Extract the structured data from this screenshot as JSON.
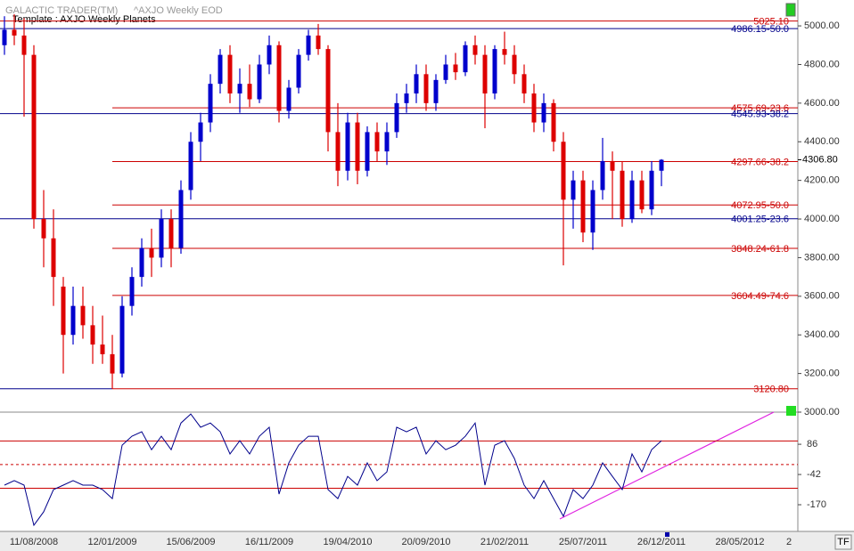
{
  "ui": {
    "tf_button": "TF"
  },
  "chart_data": [
    {
      "type": "candlestick",
      "title": "GALACTIC TRADER(TM)",
      "subtitle": "^AXJO Weekly EOD",
      "template": "Template : AXJO Weekly Planets",
      "categories": [
        null,
        null,
        null,
        "11/08/2008",
        null,
        null,
        null,
        null,
        null,
        null,
        null,
        "12/01/2009",
        null,
        null,
        null,
        null,
        null,
        null,
        null,
        "15/06/2009",
        null,
        null,
        null,
        null,
        null,
        null,
        null,
        "16/11/2009",
        null,
        null,
        null,
        null,
        null,
        null,
        null,
        "19/04/2010",
        null,
        null,
        null,
        null,
        null,
        null,
        null,
        "20/09/2010",
        null,
        null,
        null,
        null,
        null,
        null,
        null,
        "21/02/2011",
        null,
        null,
        null,
        null,
        null,
        null,
        null,
        "25/07/2011",
        null,
        null,
        null,
        null,
        null,
        null,
        null,
        "26/12/2011",
        null,
        null,
        null,
        null,
        null,
        null,
        null,
        "28/05/2012",
        null,
        null,
        null,
        null,
        "2"
      ],
      "open": [
        4900,
        4980,
        4950,
        4850,
        4000,
        3900,
        3650,
        3400,
        3550,
        3450,
        3350,
        3300,
        3200,
        3550,
        3700,
        3850,
        3800,
        4000,
        3850,
        4150,
        4400,
        4500,
        4700,
        4850,
        4650,
        4700,
        4620,
        4800,
        4900,
        4560,
        4680,
        4850,
        4950,
        4880,
        4450,
        4250,
        4500,
        4250,
        4450,
        4350,
        4450,
        4600,
        4650,
        4750,
        4600,
        4720,
        4800,
        4760,
        4900,
        4850,
        4650,
        4880,
        4850,
        4750,
        4650,
        4500,
        4600,
        4400,
        4100,
        4200,
        3930,
        4150,
        4300,
        4250,
        4000,
        4200,
        4050,
        4250,
        null,
        null,
        null,
        null,
        null,
        null,
        null,
        null,
        null,
        null,
        null,
        null,
        null
      ],
      "high": [
        5050,
        5060,
        5040,
        4900,
        4150,
        4050,
        3700,
        3650,
        3650,
        3550,
        3500,
        3400,
        3600,
        3750,
        3900,
        3950,
        4050,
        4050,
        4200,
        4450,
        4550,
        4750,
        4880,
        4900,
        4780,
        4800,
        4850,
        4950,
        4920,
        4720,
        4880,
        4980,
        5010,
        4900,
        4600,
        4550,
        4550,
        4480,
        4500,
        4500,
        4650,
        4700,
        4800,
        4800,
        4750,
        4850,
        4860,
        4920,
        4950,
        4900,
        4900,
        4970,
        4900,
        4800,
        4700,
        4650,
        4620,
        4450,
        4250,
        4250,
        4200,
        4420,
        4350,
        4300,
        4250,
        4250,
        4300,
        4310,
        null,
        null,
        null,
        null,
        null,
        null,
        null,
        null,
        null,
        null,
        null,
        null,
        null
      ],
      "low": [
        4850,
        4900,
        4530,
        3950,
        3750,
        3550,
        3200,
        3350,
        3380,
        3250,
        3250,
        3120,
        3180,
        3500,
        3650,
        3700,
        3750,
        3750,
        3820,
        4100,
        4300,
        4450,
        4650,
        4600,
        4550,
        4580,
        4600,
        4750,
        4500,
        4520,
        4650,
        4820,
        4850,
        4350,
        4170,
        4200,
        4180,
        4220,
        4300,
        4280,
        4420,
        4550,
        4600,
        4560,
        4560,
        4700,
        4720,
        4740,
        4800,
        4470,
        4620,
        4800,
        4700,
        4600,
        4450,
        4450,
        4350,
        3760,
        3950,
        3880,
        3840,
        4100,
        4000,
        3960,
        3980,
        4030,
        4020,
        4170,
        null,
        null,
        null,
        null,
        null,
        null,
        null,
        null,
        null,
        null,
        null,
        null,
        null
      ],
      "close": [
        4980,
        4950,
        4850,
        4000,
        3900,
        3700,
        3400,
        3550,
        3450,
        3350,
        3300,
        3200,
        3550,
        3700,
        3850,
        3800,
        4000,
        3850,
        4150,
        4400,
        4500,
        4700,
        4850,
        4650,
        4700,
        4620,
        4800,
        4900,
        4560,
        4680,
        4850,
        4950,
        4880,
        4450,
        4250,
        4500,
        4250,
        4450,
        4350,
        4450,
        4600,
        4650,
        4750,
        4600,
        4720,
        4800,
        4760,
        4900,
        4850,
        4650,
        4880,
        4850,
        4750,
        4650,
        4500,
        4600,
        4400,
        4100,
        4200,
        3930,
        4150,
        4300,
        4250,
        4000,
        4200,
        4050,
        4250,
        4306.8,
        null,
        null,
        null,
        null,
        null,
        null,
        null,
        null,
        null,
        null,
        null,
        null,
        null
      ],
      "up_color": "#0000cc",
      "down_color": "#dd0000",
      "ylim": [
        3000,
        5134
      ],
      "yticks": [
        {
          "value": 5000,
          "label": "5000.00"
        },
        {
          "value": 4800,
          "label": "4800.00"
        },
        {
          "value": 4600,
          "label": "4600.00"
        },
        {
          "value": 4400,
          "label": "4400.00"
        },
        {
          "value": 4200,
          "label": "4200.00"
        },
        {
          "value": 4000,
          "label": "4000.00"
        },
        {
          "value": 3800,
          "label": "3800.00"
        },
        {
          "value": 3600,
          "label": "3600.00"
        },
        {
          "value": 3400,
          "label": "3400.00"
        },
        {
          "value": 3200,
          "label": "3200.00"
        },
        {
          "value": 3000,
          "label": "3000.00"
        }
      ],
      "last_price": {
        "value": 4306.8,
        "label": "4306.80"
      },
      "levels": [
        {
          "value": 5025.1,
          "label": "5025.10",
          "color": "#cc0000"
        },
        {
          "value": 4986.15,
          "label": "4986.15-50.0",
          "color": "#00008b"
        },
        {
          "value": 4575.69,
          "label": "4575.69-23.6",
          "color": "#cc0000"
        },
        {
          "value": 4545.93,
          "label": "4545.93-38.2",
          "color": "#00008b"
        },
        {
          "value": 4297.66,
          "label": "4297.66-38.2",
          "color": "#cc0000"
        },
        {
          "value": 4072.95,
          "label": "4072.95-50.0",
          "color": "#cc0000"
        },
        {
          "value": 4001.25,
          "label": "4001.25-23.6",
          "color": "#00008b"
        },
        {
          "value": 3848.24,
          "label": "3848.24-61.8",
          "color": "#cc0000"
        },
        {
          "value": 3604.49,
          "label": "3604.49-74.6",
          "color": "#cc0000"
        },
        {
          "value": 3120.8,
          "label": "3120.80",
          "color": "#cc0000"
        }
      ]
    },
    {
      "type": "line",
      "color": "#00008b",
      "values": [
        -87,
        -68,
        -87,
        -257,
        -200,
        -106,
        -87,
        -68,
        -87,
        -87,
        -106,
        -144,
        82,
        120,
        139,
        63,
        120,
        63,
        176,
        214,
        158,
        176,
        139,
        45,
        101,
        45,
        120,
        158,
        -125,
        7,
        82,
        120,
        120,
        -106,
        -144,
        -50,
        -87,
        7,
        -68,
        -31,
        158,
        139,
        158,
        45,
        101,
        63,
        82,
        120,
        176,
        -87,
        82,
        101,
        26,
        -87,
        -144,
        -68,
        -144,
        -219,
        -106,
        -144,
        -87,
        7,
        -50,
        -106,
        45,
        -31,
        63,
        101,
        null,
        null,
        null,
        null,
        null,
        null,
        null,
        null,
        null,
        null,
        null,
        null,
        null
      ],
      "ylim": [
        -283,
        222
      ],
      "yticks": [
        86,
        -42,
        -170
      ],
      "levels": [
        100,
        0,
        -100
      ],
      "level_color": "#cc0000",
      "level_styles": [
        "solid",
        "dashed",
        "solid"
      ]
    }
  ]
}
